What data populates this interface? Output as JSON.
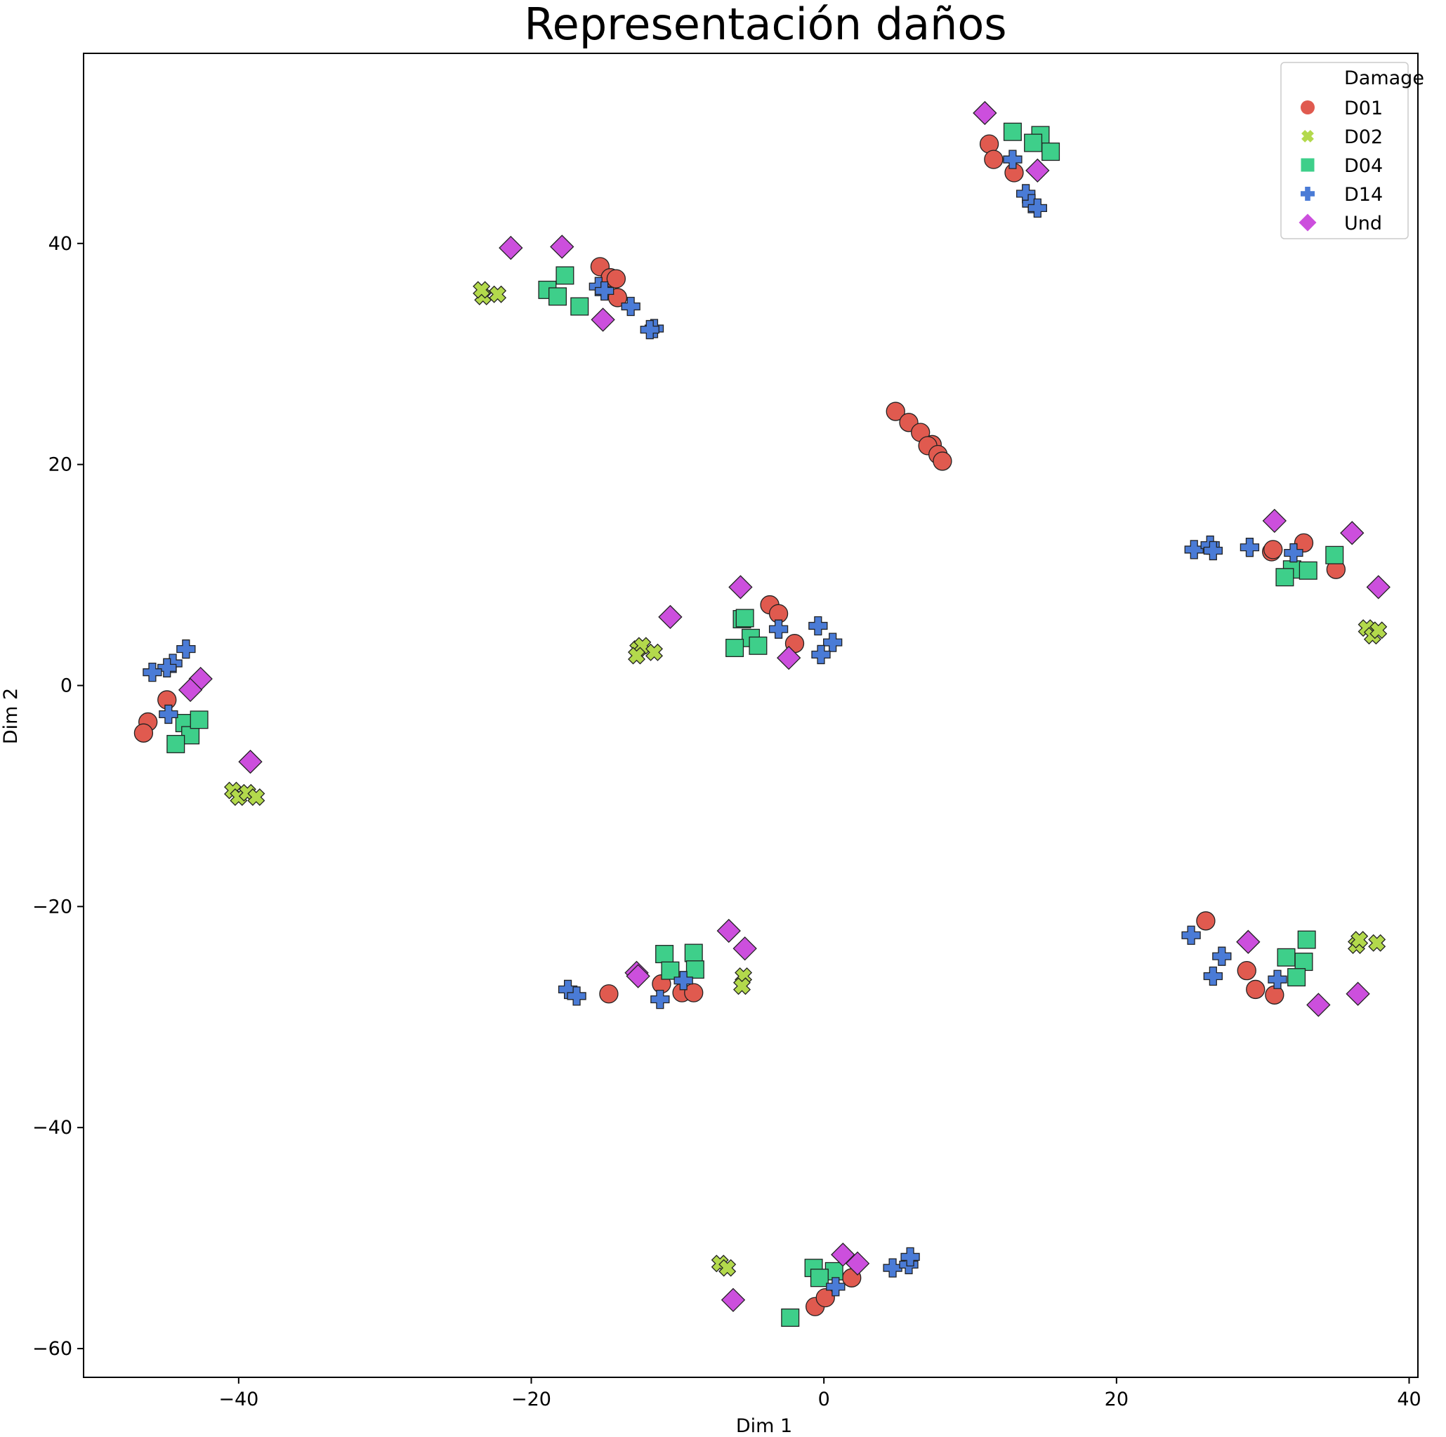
{
  "chart_data": {
    "type": "scatter",
    "title": "Representación daños",
    "xlabel": "Dim 1",
    "ylabel": "Dim 2",
    "xlim": [
      -50.6,
      40.6
    ],
    "ylim": [
      -62.6,
      57.2
    ],
    "xticks": [
      -40,
      -20,
      0,
      20,
      40
    ],
    "yticks": [
      -60,
      -40,
      -20,
      0,
      20,
      40
    ],
    "xtick_labels": [
      "−40",
      "−20",
      "0",
      "20",
      "40"
    ],
    "ytick_labels": [
      "−60",
      "−40",
      "−20",
      "0",
      "20",
      "40"
    ],
    "grid": false,
    "legend": {
      "title": "Damage",
      "placement": "top-right"
    },
    "series": [
      {
        "name": "D01",
        "marker": "circle",
        "color": "#e05a4f",
        "points": [
          [
            11.3,
            49.0
          ],
          [
            11.6,
            47.6
          ],
          [
            13.0,
            46.4
          ],
          [
            -15.3,
            37.9
          ],
          [
            -14.6,
            36.9
          ],
          [
            -14.2,
            36.8
          ],
          [
            -14.1,
            35.1
          ],
          [
            4.9,
            24.8
          ],
          [
            5.8,
            23.8
          ],
          [
            6.6,
            22.9
          ],
          [
            7.4,
            21.8
          ],
          [
            7.1,
            21.7
          ],
          [
            7.8,
            20.9
          ],
          [
            8.1,
            20.3
          ],
          [
            30.6,
            12.1
          ],
          [
            30.7,
            12.3
          ],
          [
            32.8,
            12.9
          ],
          [
            35.0,
            10.5
          ],
          [
            -3.7,
            7.3
          ],
          [
            -3.1,
            6.5
          ],
          [
            -2.0,
            3.8
          ],
          [
            -44.9,
            -1.3
          ],
          [
            -46.2,
            -3.3
          ],
          [
            -46.5,
            -4.3
          ],
          [
            26.1,
            -21.3
          ],
          [
            28.9,
            -25.8
          ],
          [
            29.5,
            -27.5
          ],
          [
            30.8,
            -28.0
          ],
          [
            -14.7,
            -27.9
          ],
          [
            -11.1,
            -27.0
          ],
          [
            -9.7,
            -27.8
          ],
          [
            -8.9,
            -27.8
          ],
          [
            -0.6,
            -56.2
          ],
          [
            0.1,
            -55.4
          ],
          [
            1.9,
            -53.6
          ]
        ]
      },
      {
        "name": "D02",
        "marker": "x",
        "color": "#b3d94c",
        "points": [
          [
            -23.3,
            35.2
          ],
          [
            -22.3,
            35.4
          ],
          [
            -23.4,
            35.8
          ],
          [
            37.1,
            5.2
          ],
          [
            37.5,
            4.5
          ],
          [
            37.9,
            5.0
          ],
          [
            -12.7,
            3.3
          ],
          [
            -12.4,
            3.6
          ],
          [
            -12.8,
            2.7
          ],
          [
            -11.6,
            3.0
          ],
          [
            -40.4,
            -9.5
          ],
          [
            -40.0,
            -10.1
          ],
          [
            -39.4,
            -9.7
          ],
          [
            -38.8,
            -10.1
          ],
          [
            36.4,
            -23.5
          ],
          [
            36.6,
            -23.0
          ],
          [
            37.8,
            -23.3
          ],
          [
            -5.5,
            -26.3
          ],
          [
            -5.6,
            -27.2
          ],
          [
            -7.1,
            -52.3
          ],
          [
            -6.6,
            -52.7
          ]
        ]
      },
      {
        "name": "D04",
        "marker": "square",
        "color": "#3ecf8a",
        "points": [
          [
            12.9,
            50.1
          ],
          [
            14.8,
            49.8
          ],
          [
            14.3,
            49.1
          ],
          [
            15.5,
            48.3
          ],
          [
            -17.7,
            37.1
          ],
          [
            -18.9,
            35.8
          ],
          [
            -18.2,
            35.2
          ],
          [
            -16.7,
            34.3
          ],
          [
            34.9,
            11.8
          ],
          [
            32.0,
            10.5
          ],
          [
            33.1,
            10.4
          ],
          [
            31.5,
            9.8
          ],
          [
            -5.6,
            6.0
          ],
          [
            -5.4,
            6.1
          ],
          [
            -5.0,
            4.3
          ],
          [
            -6.1,
            3.4
          ],
          [
            -4.5,
            3.6
          ],
          [
            -43.7,
            -3.4
          ],
          [
            -43.3,
            -4.5
          ],
          [
            -42.7,
            -3.1
          ],
          [
            -44.3,
            -5.3
          ],
          [
            33.0,
            -23.0
          ],
          [
            31.6,
            -24.6
          ],
          [
            32.8,
            -25.0
          ],
          [
            32.3,
            -26.4
          ],
          [
            -10.9,
            -24.3
          ],
          [
            -8.9,
            -24.2
          ],
          [
            -10.5,
            -25.8
          ],
          [
            -8.8,
            -25.7
          ],
          [
            -0.7,
            -52.7
          ],
          [
            0.7,
            -53.0
          ],
          [
            -0.3,
            -53.6
          ],
          [
            -2.3,
            -57.2
          ]
        ]
      },
      {
        "name": "D14",
        "marker": "plus",
        "color": "#4a7bd6",
        "points": [
          [
            12.9,
            47.6
          ],
          [
            13.8,
            44.5
          ],
          [
            14.2,
            43.6
          ],
          [
            14.6,
            43.2
          ],
          [
            -15.4,
            36.1
          ],
          [
            -15.0,
            35.7
          ],
          [
            -13.2,
            34.3
          ],
          [
            -11.6,
            32.3
          ],
          [
            -11.9,
            32.2
          ],
          [
            25.3,
            12.3
          ],
          [
            26.4,
            12.7
          ],
          [
            26.6,
            12.2
          ],
          [
            29.1,
            12.5
          ],
          [
            32.1,
            12.0
          ],
          [
            -3.1,
            5.1
          ],
          [
            -0.4,
            5.4
          ],
          [
            0.6,
            3.9
          ],
          [
            -0.2,
            2.8
          ],
          [
            -43.6,
            3.3
          ],
          [
            -44.5,
            2.0
          ],
          [
            -44.9,
            1.6
          ],
          [
            -45.9,
            1.2
          ],
          [
            -44.8,
            -2.6
          ],
          [
            25.1,
            -22.6
          ],
          [
            27.2,
            -24.5
          ],
          [
            26.6,
            -26.3
          ],
          [
            31.0,
            -26.6
          ],
          [
            -17.5,
            -27.5
          ],
          [
            -16.9,
            -28.1
          ],
          [
            -11.2,
            -28.4
          ],
          [
            -9.6,
            -26.7
          ],
          [
            4.7,
            -52.7
          ],
          [
            5.8,
            -52.4
          ],
          [
            5.9,
            -51.7
          ],
          [
            0.8,
            -54.4
          ]
        ]
      },
      {
        "name": "Und",
        "marker": "diamond",
        "color": "#cc4fdd",
        "points": [
          [
            11.0,
            51.8
          ],
          [
            14.6,
            46.6
          ],
          [
            -21.4,
            39.6
          ],
          [
            -17.9,
            39.7
          ],
          [
            -15.1,
            33.1
          ],
          [
            30.8,
            14.9
          ],
          [
            36.1,
            13.8
          ],
          [
            37.9,
            8.9
          ],
          [
            -5.7,
            8.9
          ],
          [
            -10.5,
            6.2
          ],
          [
            -2.4,
            2.5
          ],
          [
            -42.6,
            0.6
          ],
          [
            -43.3,
            -0.4
          ],
          [
            -39.2,
            -6.9
          ],
          [
            29.0,
            -23.2
          ],
          [
            33.8,
            -28.9
          ],
          [
            36.5,
            -27.9
          ],
          [
            -6.5,
            -22.2
          ],
          [
            -5.4,
            -23.8
          ],
          [
            -12.8,
            -26.0
          ],
          [
            -12.7,
            -26.3
          ],
          [
            1.3,
            -51.5
          ],
          [
            2.3,
            -52.3
          ],
          [
            -6.2,
            -55.6
          ]
        ]
      }
    ]
  }
}
